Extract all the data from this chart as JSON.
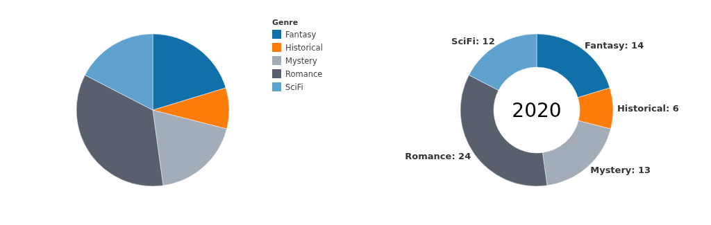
{
  "chart_data": [
    {
      "type": "pie",
      "categories": [
        "Fantasy",
        "Historical",
        "Mystery",
        "Romance",
        "SciFi"
      ],
      "values": [
        20.29,
        8.7,
        18.84,
        34.78,
        17.39
      ],
      "colors": [
        "#1170aa",
        "#fc7d0b",
        "#a3acb9",
        "#57606c",
        "#5fa2ce"
      ],
      "legend": "right",
      "legend_title": "Genre"
    },
    {
      "type": "donut",
      "categories": [
        "Fantasy",
        "Historical",
        "Mystery",
        "Romance",
        "SciFi"
      ],
      "values": [
        14,
        6,
        13,
        24,
        12
      ],
      "colors": [
        "#1170aa",
        "#fc7d0b",
        "#a3acb9",
        "#57606c",
        "#5fa2ce"
      ],
      "value_labels": [
        ": 14",
        ": 6",
        ": 13",
        ": 24",
        ": 12"
      ],
      "annotations": [
        "2020"
      ]
    }
  ]
}
